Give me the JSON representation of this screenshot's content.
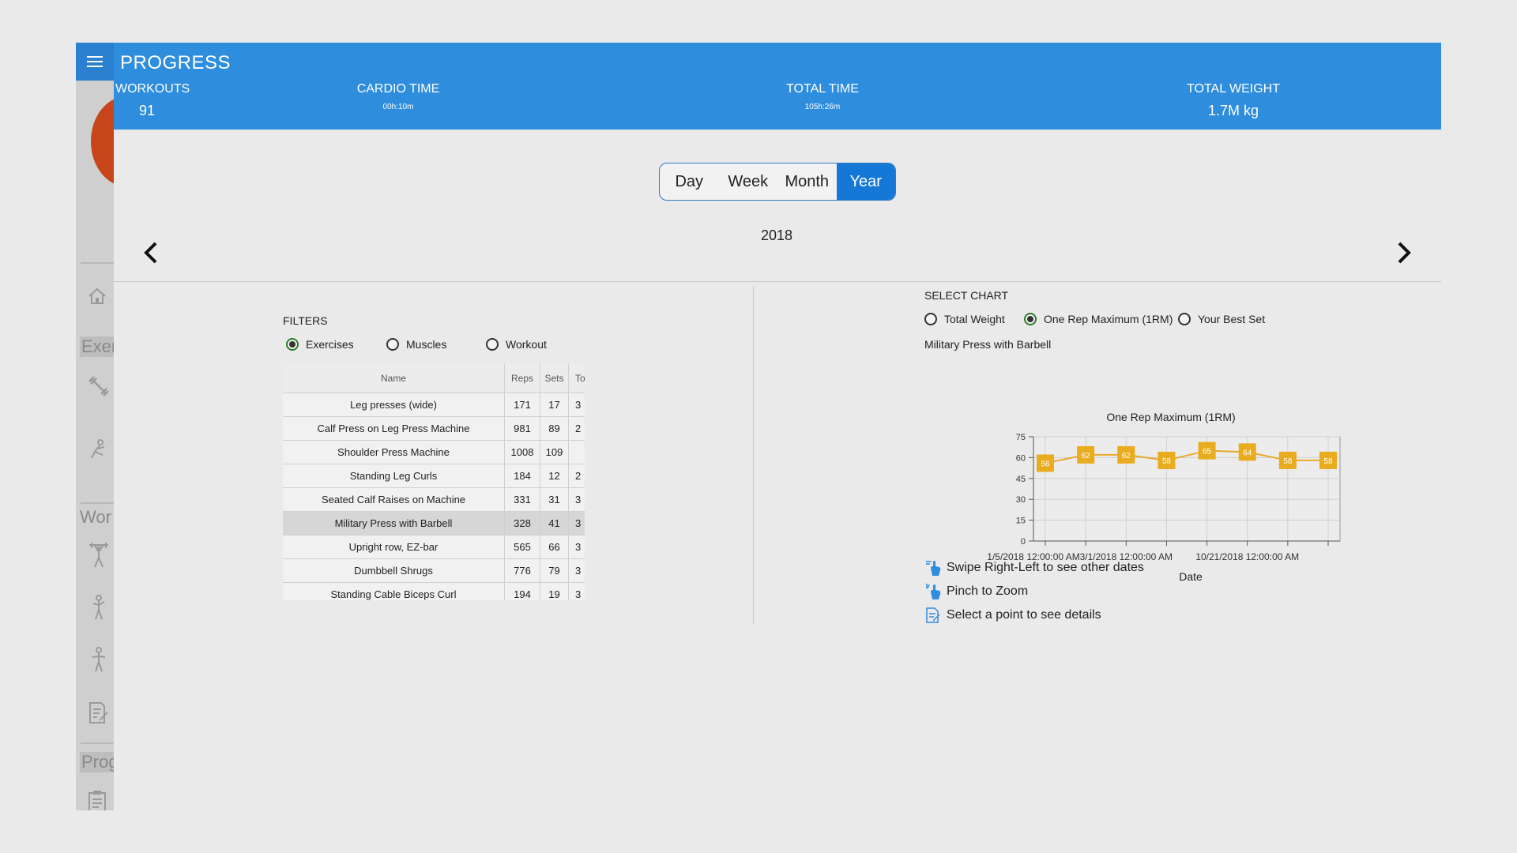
{
  "sidebar": {
    "labels": {
      "exercises": "Exer",
      "workouts": "Wor",
      "progress": "Prog"
    }
  },
  "header": {
    "title": "PROGRESS",
    "stats": {
      "workouts": {
        "label": "WORKOUTS",
        "value": "91"
      },
      "cardio": {
        "label": "CARDIO TIME",
        "value": "00h:10m"
      },
      "total_time": {
        "label": "TOTAL TIME",
        "value": "105h:26m"
      },
      "total_weight": {
        "label": "TOTAL WEIGHT",
        "value": "1.7M kg"
      }
    }
  },
  "range_toggle": {
    "options": [
      "Day",
      "Week",
      "Month",
      "Year"
    ],
    "selected": "Year"
  },
  "period_label": "2018",
  "filters": {
    "label": "FILTERS",
    "options": [
      "Exercises",
      "Muscles",
      "Workout"
    ],
    "selected": "Exercises"
  },
  "table": {
    "headers": [
      "Name",
      "Reps",
      "Sets",
      "To"
    ],
    "rows": [
      {
        "name": "Leg presses (wide)",
        "reps": "171",
        "sets": "17",
        "t": "3"
      },
      {
        "name": "Calf Press on Leg Press Machine",
        "reps": "981",
        "sets": "89",
        "t": "2"
      },
      {
        "name": "Shoulder Press Machine",
        "reps": "1008",
        "sets": "109",
        "t": ""
      },
      {
        "name": "Standing Leg Curls",
        "reps": "184",
        "sets": "12",
        "t": "2"
      },
      {
        "name": "Seated Calf Raises on Machine",
        "reps": "331",
        "sets": "31",
        "t": "3"
      },
      {
        "name": "Military Press with Barbell",
        "reps": "328",
        "sets": "41",
        "t": "3"
      },
      {
        "name": "Upright row, EZ-bar",
        "reps": "565",
        "sets": "66",
        "t": "3"
      },
      {
        "name": "Dumbbell Shrugs",
        "reps": "776",
        "sets": "79",
        "t": "3"
      },
      {
        "name": "Standing Cable Biceps Curl",
        "reps": "194",
        "sets": "19",
        "t": "3"
      }
    ],
    "selected_row": 5
  },
  "select_chart": {
    "label": "SELECT CHART",
    "options": [
      "Total Weight",
      "One Rep Maximum (1RM)",
      "Your Best Set"
    ],
    "selected": "One Rep Maximum (1RM)",
    "exercise": "Military Press with Barbell"
  },
  "chart_data": {
    "type": "line",
    "title": "One Rep Maximum (1RM)",
    "xlabel": "Date",
    "ylabel": "",
    "x_ticks": [
      "1/5/2018 12:00:00 AM",
      "3/1/2018 12:00:00 AM",
      "10/21/2018 12:00:00 AM"
    ],
    "values": [
      56,
      62,
      62,
      58,
      65,
      64,
      58,
      58
    ],
    "ylim": [
      0,
      75
    ],
    "y_ticks": [
      0,
      15,
      30,
      45,
      60,
      75
    ],
    "grid": true,
    "colors": {
      "line": "#e8a92a",
      "marker": "#e9ac1f"
    }
  },
  "tips": {
    "swipe": "Swipe Right-Left to see other dates",
    "pinch": "Pinch to Zoom",
    "select": "Select a point to see details"
  },
  "colors": {
    "header": "#2e8ddd",
    "accent": "#1577d6",
    "radio_selected": "#2d7a2d",
    "avatar": "#c8441a"
  }
}
